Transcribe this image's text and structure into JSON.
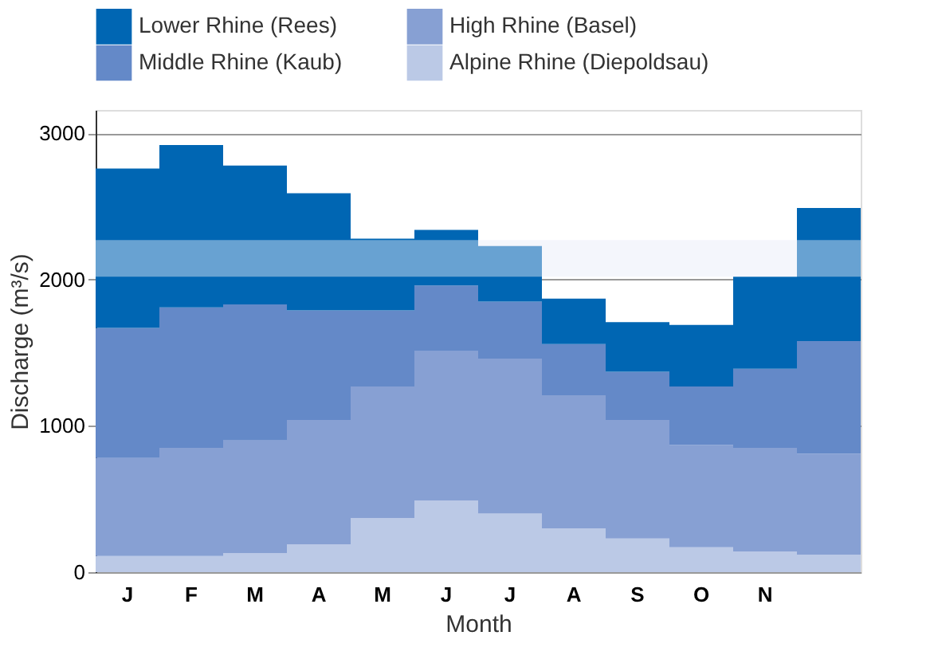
{
  "chart_data": {
    "type": "bar",
    "stacked": true,
    "xlabel": "Month",
    "ylabel": "Discharge (m³/s)",
    "categories": [
      "J",
      "F",
      "M",
      "A",
      "M",
      "J",
      "J",
      "A",
      "S",
      "O",
      "N",
      null
    ],
    "series": [
      {
        "name": "Alpine Rhine (Diepoldsau)",
        "color": "#bbc9e6",
        "values": [
          110,
          110,
          130,
          190,
          370,
          490,
          400,
          300,
          230,
          170,
          140,
          120
        ]
      },
      {
        "name": "High Rhine (Basel)",
        "color": "#87a0d3",
        "values": [
          670,
          740,
          770,
          850,
          900,
          1020,
          1060,
          910,
          810,
          700,
          710,
          690
        ]
      },
      {
        "name": "Middle Rhine (Kaub)",
        "color": "#6489c8",
        "values": [
          890,
          960,
          930,
          750,
          520,
          450,
          390,
          350,
          330,
          400,
          540,
          770
        ]
      },
      {
        "name": "Lower Rhine (Rees)",
        "color": "#0066b3",
        "values": [
          1090,
          1110,
          950,
          800,
          490,
          380,
          380,
          310,
          340,
          420,
          630,
          910
        ]
      }
    ],
    "ylim": [
      0,
      3160
    ],
    "yticks": [
      0,
      1000,
      2000,
      3000
    ],
    "grid": "y",
    "legend": "top",
    "bands": [
      {
        "axis": "y",
        "from": 2020,
        "to": 2270,
        "color": "#e6ecf8"
      }
    ]
  }
}
